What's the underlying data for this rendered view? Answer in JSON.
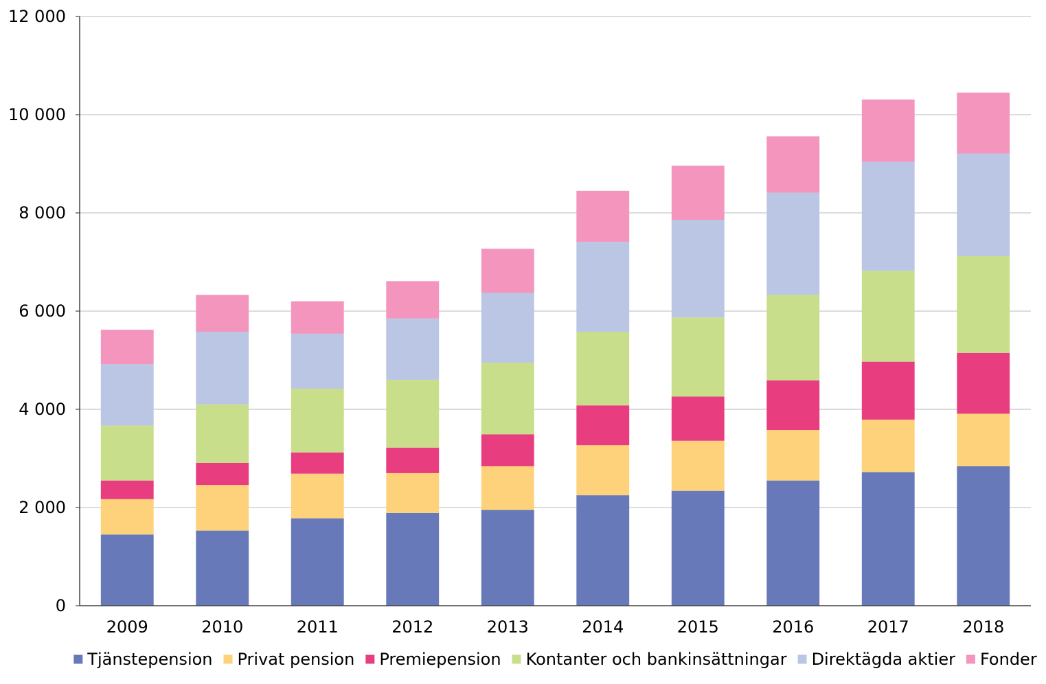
{
  "chart_data": {
    "type": "bar",
    "stacked": true,
    "title": "",
    "xlabel": "",
    "ylabel": "",
    "ylim": [
      0,
      12000
    ],
    "yticks": [
      0,
      2000,
      4000,
      6000,
      8000,
      10000,
      12000
    ],
    "ytick_labels": [
      "0",
      "2 000",
      "4 000",
      "6 000",
      "8 000",
      "10 000",
      "12 000"
    ],
    "grid": true,
    "legend_position": "bottom",
    "categories": [
      "2009",
      "2010",
      "2011",
      "2012",
      "2013",
      "2014",
      "2015",
      "2016",
      "2017",
      "2018"
    ],
    "series": [
      {
        "name": "Tjänstepension",
        "color": "#6779b9",
        "values": [
          1450,
          1530,
          1780,
          1890,
          1950,
          2250,
          2340,
          2550,
          2720,
          2840
        ]
      },
      {
        "name": "Privat pension",
        "color": "#fdd27a",
        "values": [
          720,
          930,
          910,
          810,
          890,
          1020,
          1020,
          1030,
          1070,
          1070
        ]
      },
      {
        "name": "Premiepension",
        "color": "#e83e80",
        "values": [
          380,
          450,
          430,
          520,
          650,
          810,
          900,
          1010,
          1180,
          1240
        ]
      },
      {
        "name": "Kontanter och bankinsättningar",
        "color": "#c8de8b",
        "values": [
          1120,
          1190,
          1300,
          1380,
          1460,
          1500,
          1610,
          1740,
          1850,
          1970
        ]
      },
      {
        "name": "Direktägda aktier",
        "color": "#bbc6e4",
        "values": [
          1250,
          1480,
          1120,
          1250,
          1420,
          1830,
          1990,
          2080,
          2220,
          2090
        ]
      },
      {
        "name": "Fonder",
        "color": "#f495bd",
        "values": [
          700,
          750,
          660,
          760,
          900,
          1040,
          1100,
          1150,
          1270,
          1240
        ]
      }
    ]
  }
}
